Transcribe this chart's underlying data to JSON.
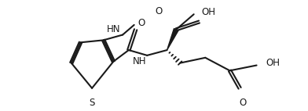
{
  "background": "#ffffff",
  "line_color": "#1a1a1a",
  "lw": 1.5,
  "fs": 8.5,
  "figsize": [
    3.92,
    1.42
  ],
  "dpi": 100,
  "xlim": [
    0.0,
    1.0
  ],
  "ylim": [
    0.0,
    1.0
  ]
}
